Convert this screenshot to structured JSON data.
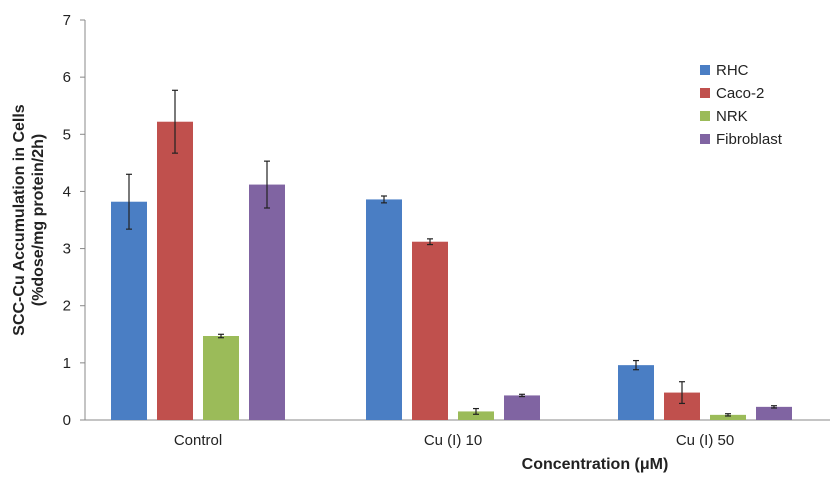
{
  "chart_data": {
    "type": "bar",
    "title": "",
    "xlabel": "Concentration (μM)",
    "ylabel": [
      "SCC-Cu Accumulation in Cells",
      "(%dose/mg protein/2h)"
    ],
    "categories": [
      "Control",
      "Cu (I) 10",
      "Cu (I) 50"
    ],
    "ylim": [
      0,
      7
    ],
    "yticks": [
      "0",
      "1",
      "2",
      "3",
      "4",
      "5",
      "6",
      "7"
    ],
    "grid": false,
    "legend_position": "top-right",
    "series": [
      {
        "name": "RHC",
        "color": "#4a7ec4",
        "values": [
          3.82,
          3.86,
          0.96
        ],
        "errors": [
          0.48,
          0.06,
          0.08
        ]
      },
      {
        "name": "Caco-2",
        "color": "#c0504d",
        "values": [
          5.22,
          3.12,
          0.48
        ],
        "errors": [
          0.55,
          0.05,
          0.19
        ]
      },
      {
        "name": "NRK",
        "color": "#9bbb59",
        "values": [
          1.47,
          0.15,
          0.09
        ],
        "errors": [
          0.03,
          0.05,
          0.02
        ]
      },
      {
        "name": "Fibroblast",
        "color": "#8064a2",
        "values": [
          4.12,
          0.43,
          0.23
        ],
        "errors": [
          0.41,
          0.02,
          0.02
        ]
      }
    ]
  }
}
